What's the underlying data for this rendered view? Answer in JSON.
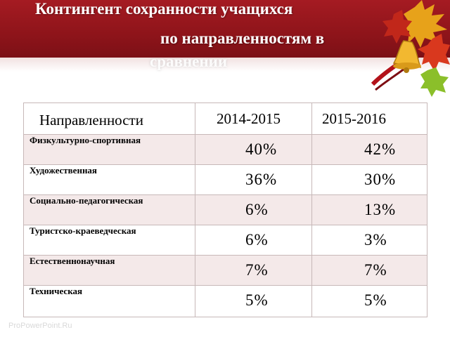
{
  "title": {
    "line1": "Контингент сохранности учащихся",
    "line2": "по направленностям в",
    "line3": "сравнении"
  },
  "table": {
    "headers": [
      "Направленности",
      "2014-2015",
      "2015-2016"
    ],
    "rows": [
      {
        "label": "Физкультурно-спортивная",
        "y2014": "40%",
        "y2015": "42%"
      },
      {
        "label": "Художественная",
        "y2014": "36%",
        "y2015": "30%"
      },
      {
        "label": "Социально-педагогическая",
        "y2014": "6%",
        "y2015": "13%"
      },
      {
        "label": "Туристско-краеведческая",
        "y2014": "6%",
        "y2015": "3%"
      },
      {
        "label": "Естественнонаучная",
        "y2014": "7%",
        "y2015": "7%"
      },
      {
        "label": "Техническая",
        "y2014": "5%",
        "y2015": "5%"
      }
    ]
  },
  "watermark": "ProPowerPoint.Ru",
  "colors": {
    "band": "#a51b22",
    "row_alt": "#f4e9e9",
    "border": "#c7b8b8"
  },
  "decoration": {
    "icon": "autumn-leaves-bell-icon"
  }
}
